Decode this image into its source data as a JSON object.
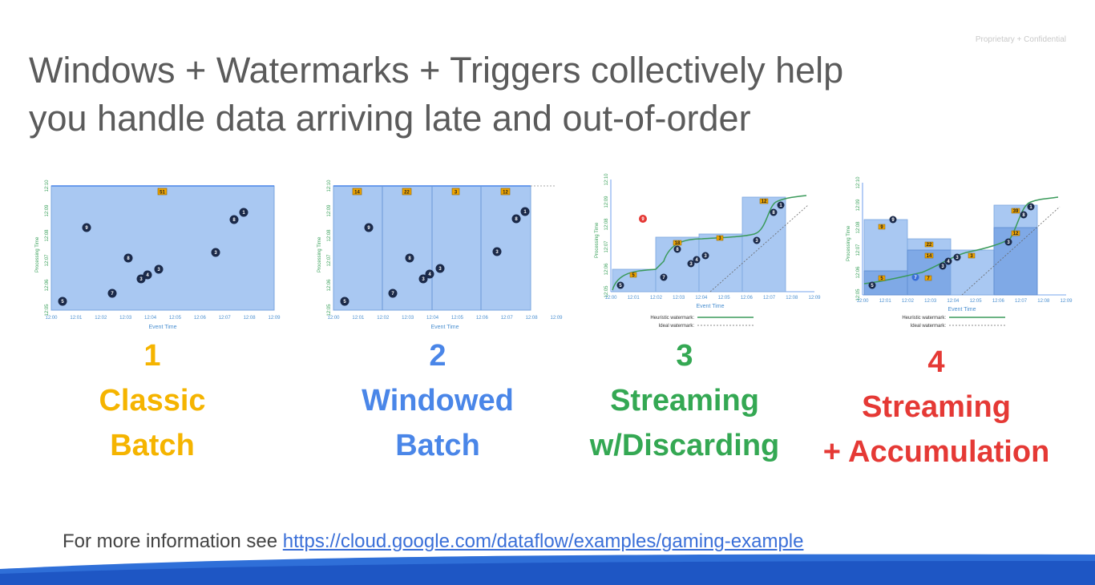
{
  "confidential": "Proprietary + Confidential",
  "title": {
    "line1": "Windows + Watermarks + Triggers collectively help",
    "line2": "you handle data arriving late and out-of-order"
  },
  "axes": {
    "x_label": "Event Time",
    "y_label": "Processing Time",
    "x_ticks": [
      "12:00",
      "12:01",
      "12:02",
      "12:03",
      "12:04",
      "12:05",
      "12:06",
      "12:07",
      "12:08",
      "12:09"
    ],
    "y_ticks": [
      "12:05",
      "12:06",
      "12:07",
      "12:08",
      "12:09",
      "12:10"
    ]
  },
  "legend": {
    "heuristic": "Heuristic watermark:",
    "ideal": "Ideal watermark:"
  },
  "panels": [
    {
      "number": "1",
      "line1": "Classic",
      "line2": "Batch",
      "color": "#f5b400",
      "sums": [
        "51"
      ]
    },
    {
      "number": "2",
      "line1": "Windowed",
      "line2": "Batch",
      "color": "#4a86e8",
      "sums": [
        "14",
        "22",
        "3",
        "12"
      ]
    },
    {
      "number": "3",
      "line1": "Streaming",
      "line2": "w/Discarding",
      "color": "#34a853",
      "sums": [
        "5",
        "18",
        "3",
        "12",
        "9"
      ]
    },
    {
      "number": "4",
      "line1": "Streaming",
      "line2": "+ Accumulation",
      "color": "#e53935",
      "sums": [
        "9",
        "5",
        "7",
        "14",
        "22",
        "3",
        "12",
        "39"
      ]
    }
  ],
  "beads": [
    "5",
    "9",
    "7",
    "8",
    "3",
    "4",
    "3",
    "3",
    "8",
    "1"
  ],
  "late_bead": "9",
  "footer": {
    "text": "For more information see",
    "link": "https://cloud.google.com/dataflow/examples/gaming-example"
  },
  "colors": {
    "title": "#5b5b5b",
    "plot_fill": "#a9c8f2",
    "watermark": "#3a9a5a",
    "wave": "#2f6fd8"
  }
}
